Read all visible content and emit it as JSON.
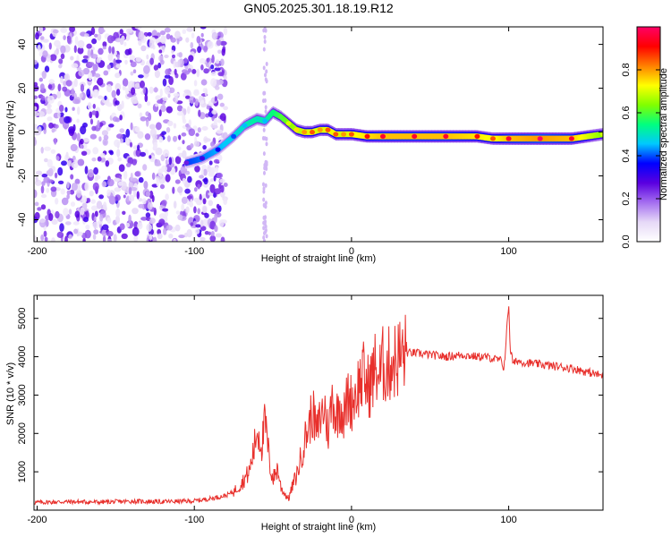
{
  "title": "GN05.2025.301.18.19.R12",
  "chart_data": [
    {
      "type": "heatmap",
      "xlabel": "Height of straight line (km)",
      "ylabel": "Frequency (Hz)",
      "xlim": [
        -202,
        160
      ],
      "ylim": [
        -50,
        48
      ],
      "x_ticks": [
        -200,
        -100,
        0,
        100
      ],
      "x_tick_labels": [
        "-200",
        "-100",
        "0",
        "100"
      ],
      "y_ticks": [
        -40,
        -20,
        0,
        20,
        40
      ],
      "y_tick_labels": [
        "-40",
        "-20",
        "0",
        "20",
        "40"
      ],
      "noise_region_km": [
        -202,
        -80
      ],
      "ridge": {
        "x": [
          -105,
          -95,
          -85,
          -75,
          -68,
          -60,
          -55,
          -50,
          -45,
          -40,
          -35,
          -30,
          -25,
          -20,
          -15,
          -10,
          -5,
          0,
          10,
          20,
          40,
          60,
          80,
          90,
          100,
          120,
          140,
          160
        ],
        "freq_hz": [
          -14,
          -12,
          -8,
          -2,
          3,
          6,
          5,
          9,
          7,
          4,
          1,
          0,
          0,
          1,
          1,
          -1,
          -1,
          -1,
          -2,
          -2,
          -2,
          -2,
          -2,
          -3,
          -3,
          -3,
          -3,
          -1
        ],
        "amplitude": [
          0.25,
          0.3,
          0.35,
          0.4,
          0.45,
          0.5,
          0.45,
          0.55,
          0.6,
          0.7,
          0.75,
          0.8,
          0.85,
          0.8,
          0.85,
          0.85,
          0.8,
          0.85,
          0.9,
          0.95,
          0.95,
          0.95,
          0.9,
          0.85,
          0.95,
          1.0,
          0.95,
          0.7
        ]
      },
      "colorbar": {
        "label": "Normalized spectral amplitude",
        "min": 0.0,
        "max": 1.0,
        "ticks": [
          0.0,
          0.2,
          0.4,
          0.6,
          0.8
        ],
        "tick_labels": [
          "0.0",
          "0.2",
          "0.4",
          "0.6",
          "0.8"
        ],
        "colors": [
          "#ffffff",
          "#e6d9f7",
          "#a56ef0",
          "#5a00e0",
          "#0000ff",
          "#00c8ff",
          "#00ff80",
          "#80ff00",
          "#ffff00",
          "#ff8000",
          "#ff0000",
          "#ff0066"
        ]
      }
    },
    {
      "type": "line",
      "xlabel": "Height of straight line (km)",
      "ylabel": "SNR (10 * v/v)",
      "xlim": [
        -202,
        160
      ],
      "ylim": [
        0,
        5600
      ],
      "x_ticks": [
        -200,
        -100,
        0,
        100
      ],
      "x_tick_labels": [
        "-200",
        "-100",
        "0",
        "100"
      ],
      "y_ticks": [
        1000,
        2000,
        3000,
        4000,
        5000
      ],
      "y_tick_labels": [
        "1000",
        "2000",
        "3000",
        "4000",
        "5000"
      ],
      "color": "#e8302c",
      "series": [
        {
          "name": "SNR",
          "x": [
            -202,
            -180,
            -160,
            -140,
            -120,
            -100,
            -90,
            -80,
            -75,
            -70,
            -65,
            -62,
            -60,
            -57,
            -55,
            -52,
            -50,
            -47,
            -45,
            -42,
            -40,
            -37,
            -35,
            -32,
            -30,
            -27,
            -25,
            -22,
            -20,
            -17,
            -15,
            -12,
            -10,
            -7,
            -5,
            -2,
            0,
            3,
            5,
            8,
            10,
            13,
            15,
            18,
            20,
            23,
            25,
            28,
            30,
            33,
            35,
            40,
            50,
            60,
            70,
            80,
            85,
            90,
            95,
            97,
            99,
            100,
            101,
            103,
            105,
            110,
            120,
            130,
            140,
            150,
            160
          ],
          "y": [
            200,
            220,
            210,
            230,
            220,
            240,
            300,
            380,
            480,
            700,
            1000,
            1600,
            2100,
            1700,
            2300,
            1200,
            800,
            1100,
            600,
            400,
            300,
            700,
            900,
            1400,
            1800,
            2200,
            2600,
            2000,
            2400,
            2700,
            2000,
            3000,
            2400,
            2800,
            2400,
            3000,
            2800,
            3100,
            3300,
            3500,
            3200,
            3400,
            3700,
            3500,
            3800,
            3700,
            3900,
            3900,
            4000,
            4050,
            4100,
            4100,
            4050,
            4000,
            4050,
            4000,
            4000,
            3950,
            3900,
            3700,
            4800,
            5400,
            4200,
            3800,
            3900,
            3850,
            3800,
            3750,
            3700,
            3600,
            3500
          ]
        }
      ]
    }
  ]
}
